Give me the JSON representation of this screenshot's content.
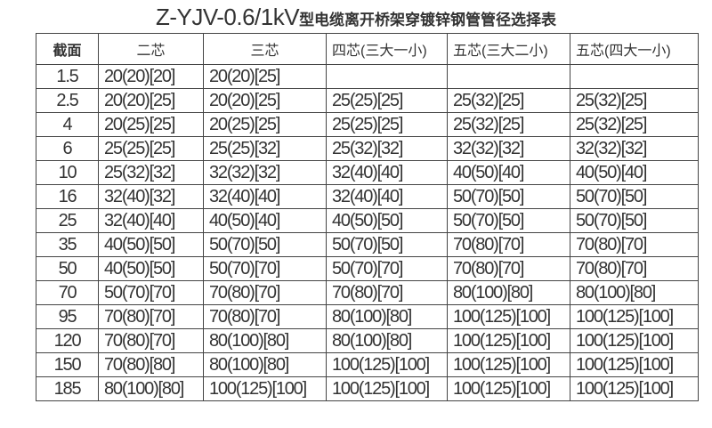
{
  "title": {
    "prefix": "Z-YJV-0.6/1kV",
    "suffix": "型电缆离开桥架穿镀锌钢管管径选择表"
  },
  "headers": [
    "截面",
    "二芯",
    "三芯",
    "四芯(三大一小)",
    "五芯(三大二小)",
    "五芯(四大一小)"
  ],
  "rows": [
    [
      "1.5",
      "20(20)[20]",
      "20(20)[25]",
      "",
      "",
      ""
    ],
    [
      "2.5",
      "20(20)[25]",
      "20(20)[25]",
      "25(25)[25]",
      "25(32)[25]",
      "25(32)[25]"
    ],
    [
      "4",
      "20(25)[25]",
      "20(25)[25]",
      "25(25)[25]",
      "25(32)[25]",
      "25(32)[25]"
    ],
    [
      "6",
      "25(25)[25]",
      "25(25)[32]",
      "25(32)[32]",
      "32(32)[32]",
      "32(32)[32]"
    ],
    [
      "10",
      "25(32)[32]",
      "32(32)[32]",
      "32(40)[40]",
      "40(50)[40]",
      "40(50)[40]"
    ],
    [
      "16",
      "32(40)[32]",
      "32(40)[40]",
      "32(40)[40]",
      "50(70)[50]",
      "50(70)[50]"
    ],
    [
      "25",
      "32(40)[40]",
      "40(50)[40]",
      "40(50)[50]",
      "50(70)[50]",
      "50(70)[50]"
    ],
    [
      "35",
      "40(50)[50]",
      "50(70)[50]",
      "50(70)[50]",
      "70(80)[70]",
      "70(80)[70]"
    ],
    [
      "50",
      "40(50)[50]",
      "50(70)[70]",
      "50(70)[70]",
      "70(80)[70]",
      "70(80)[70]"
    ],
    [
      "70",
      "50(70)[70]",
      "70(80)[70]",
      "70(80)[70]",
      "80(100)[80]",
      "80(100)[80]"
    ],
    [
      "95",
      "70(80)[70]",
      "70(80)[70]",
      "80(100)[80]",
      "100(125)[100]",
      "100(125)[100]"
    ],
    [
      "120",
      "70(80)[70]",
      "80(100)[80]",
      "80(100)[80]",
      "100(125)[100]",
      "100(125)[100]"
    ],
    [
      "150",
      "70(80)[80]",
      "80(100)[80]",
      "100(125)[100]",
      "100(125)[100]",
      "100(125)[100]"
    ],
    [
      "185",
      "80(100)[80]",
      "100(125)[100]",
      "100(125)[100]",
      "100(125)[100]",
      "100(125)[100]"
    ]
  ]
}
